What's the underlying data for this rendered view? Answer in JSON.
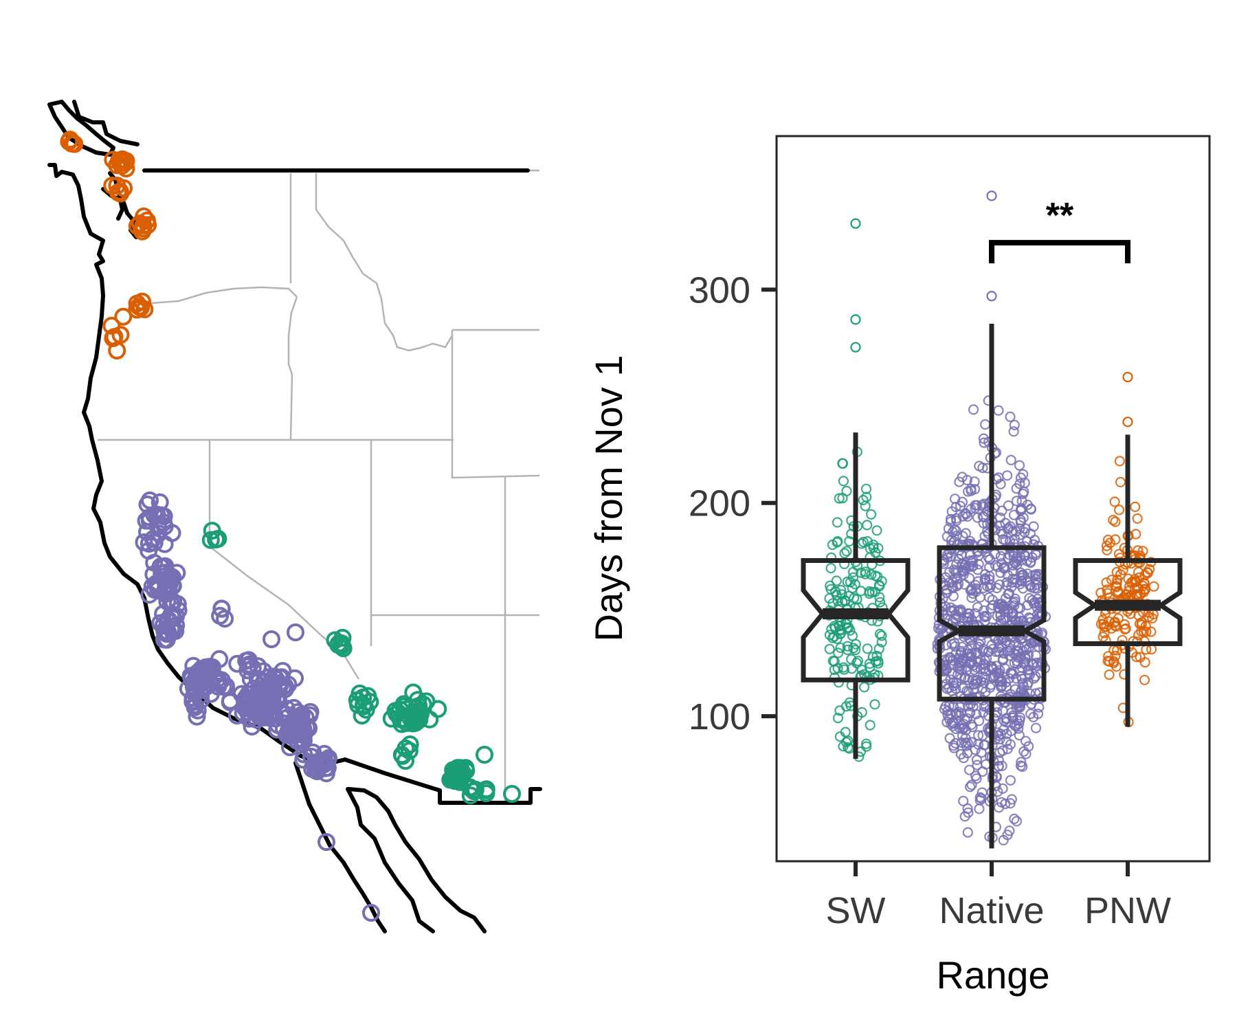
{
  "colors": {
    "SW": "#1b9e77",
    "Native": "#7570b3",
    "PNW": "#d95f02",
    "box": "#262626",
    "state_borders": "#b3b3b3",
    "coast": "#000000"
  },
  "map": {
    "type": "map",
    "series": [
      {
        "name": "PNW",
        "color_key": "PNW",
        "count": 40
      },
      {
        "name": "Native",
        "color_key": "Native",
        "count": 320
      },
      {
        "name": "SW",
        "color_key": "SW",
        "count": 95
      }
    ]
  },
  "chart_data": {
    "type": "boxplot",
    "xlabel": "Range",
    "ylabel": "Days from Nov 1",
    "categories": [
      "SW",
      "Native",
      "PNW"
    ],
    "y_ticks": [
      100,
      200,
      300
    ],
    "ylim": [
      32,
      372
    ],
    "notched": true,
    "boxes": [
      {
        "category": "SW",
        "min": 80,
        "q1": 117,
        "median": 148,
        "q3": 173,
        "max": 233,
        "notch_low": 137,
        "notch_high": 159,
        "outliers": [
          273,
          286,
          331
        ],
        "n_points": 180
      },
      {
        "category": "Native",
        "min": 38,
        "q1": 108,
        "median": 140,
        "q3": 179,
        "max": 284,
        "notch_low": 135,
        "notch_high": 145,
        "outliers": [
          297,
          344
        ],
        "n_points": 900
      },
      {
        "category": "PNW",
        "min": 95,
        "q1": 134,
        "median": 152,
        "q3": 173,
        "max": 232,
        "notch_low": 146,
        "notch_high": 158,
        "outliers": [
          238,
          259
        ],
        "n_points": 170
      }
    ],
    "comparisons": [
      {
        "from": "Native",
        "to": "PNW",
        "label": "**",
        "y": 322
      }
    ],
    "grid": false,
    "legend": "none"
  }
}
